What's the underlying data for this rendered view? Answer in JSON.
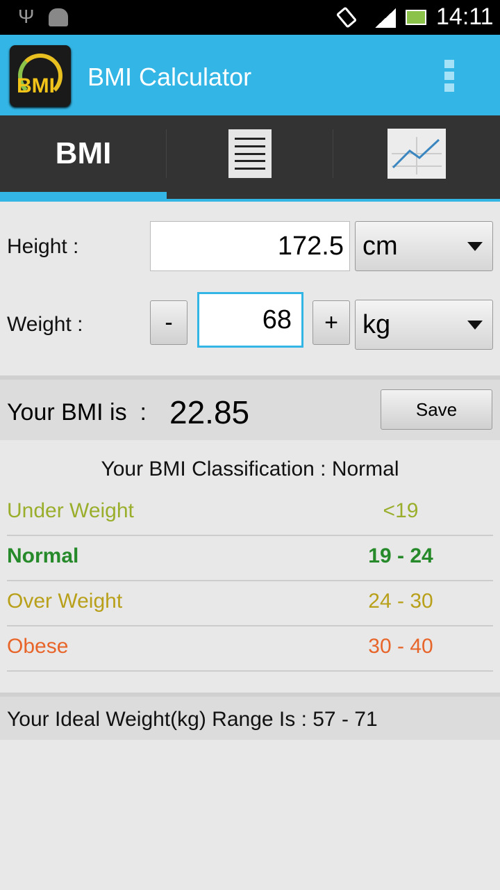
{
  "status_bar": {
    "time": "14:11",
    "icons": [
      "usb-icon",
      "android-icon",
      "rotate-icon",
      "signal-icon",
      "battery-icon"
    ]
  },
  "app_bar": {
    "title": "BMI Calculator",
    "logo_text": "BMI",
    "overflow_icon": "more-vert-icon"
  },
  "tabs": [
    {
      "label": "BMI",
      "selected": true
    },
    {
      "icon": "list-icon"
    },
    {
      "icon": "chart-icon"
    }
  ],
  "form": {
    "height_label": "Height :",
    "height_value": "172.5",
    "height_unit": "cm",
    "weight_label": "Weight :",
    "weight_value": "68",
    "weight_unit": "kg",
    "minus": "-",
    "plus": "+"
  },
  "result": {
    "label": "Your BMI is  :",
    "value": "22.85",
    "save": "Save"
  },
  "classification": {
    "title": "Your BMI Classification : Normal",
    "rows": [
      {
        "name": "Under Weight",
        "range": "<19",
        "color": "#9aae2c",
        "bold": false
      },
      {
        "name": "Normal",
        "range": "19 - 24",
        "color": "#268a2a",
        "bold": true
      },
      {
        "name": "Over Weight",
        "range": "24 - 30",
        "color": "#b8a01a",
        "bold": false
      },
      {
        "name": "Obese",
        "range": "30 - 40",
        "color": "#e8652a",
        "bold": false
      }
    ]
  },
  "ideal": "Your Ideal Weight(kg) Range Is : 57 - 71",
  "colors": {
    "accent": "#33b5e5",
    "tabbar": "#333333"
  }
}
